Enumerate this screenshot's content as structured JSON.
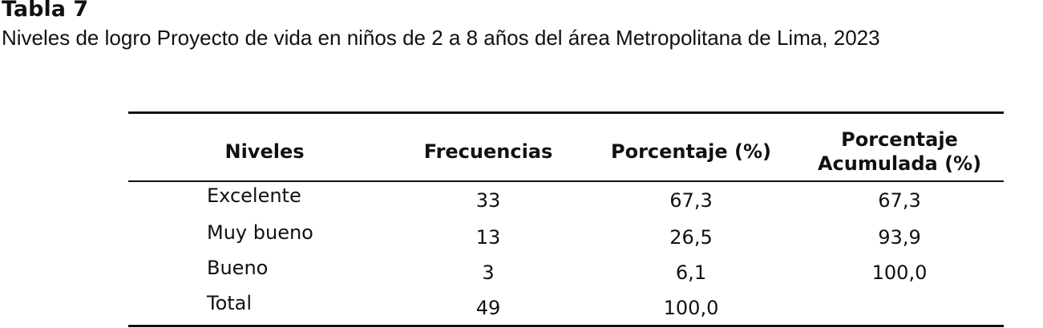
{
  "header": {
    "title": "Tabla 7",
    "subtitle": "Niveles de logro Proyecto de vida en niños de 2 a 8 años del área Metropolitana de Lima, 2023"
  },
  "table": {
    "columns": [
      "Niveles",
      "Frecuencias",
      "Porcentaje (%)",
      "Porcentaje Acumulada (%)"
    ],
    "rows": [
      [
        "Excelente",
        "33",
        "67,3",
        "67,3"
      ],
      [
        "Muy bueno",
        "13",
        "26,5",
        "93,9"
      ],
      [
        "Bueno",
        "3",
        "6,1",
        "100,0"
      ],
      [
        "Total",
        "49",
        "100,0"
      ]
    ]
  }
}
